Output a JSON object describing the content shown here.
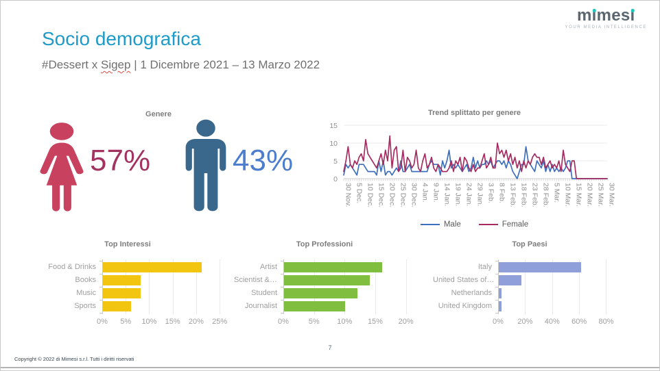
{
  "slide": {
    "title": "Socio demografica",
    "subtitle_prefix": "#Dessert x ",
    "subtitle_misspelled": "Sigep",
    "subtitle_rest": " | 1 Dicembre 2021 – 13 Marzo 2022",
    "page_number": "7",
    "copyright": "Copyright © 2022 di Mimesi s.r.l. Tutti i diritti riservati"
  },
  "logo": {
    "text": "mimesi",
    "tagline": "YOUR MEDIA INTELLIGENCE",
    "text_color": "#5B6670",
    "dot_color": "#1BC5BD"
  },
  "gender": {
    "title": "Genere",
    "female_pct": "57%",
    "male_pct": "43%",
    "female_icon_color": "#C8425F",
    "female_text_color": "#A33261",
    "male_icon_color": "#39688C",
    "male_text_color": "#4C7ECD"
  },
  "chart_data": [
    {
      "type": "line",
      "title": "Trend splittato per genere",
      "ylim": [
        0,
        15
      ],
      "yticks": [
        0,
        5,
        10,
        15
      ],
      "grid": true,
      "legend_position": "bottom",
      "x_tick_step": 5,
      "x_tick_labels": [
        "30 Nov.",
        "5 Dec.",
        "10 Dec.",
        "15 Dec.",
        "20 Dec.",
        "25 Dec.",
        "30 Dec.",
        "4 Jan.",
        "9 Jan.",
        "14 Jan.",
        "19 Jan.",
        "24 Jan.",
        "29 Jan.",
        "3 Feb.",
        "8 Feb.",
        "13 Feb.",
        "18 Feb.",
        "23 Feb.",
        "28 Feb.",
        "5 Mar.",
        "10 Mar.",
        "15 Mar.",
        "20 Mar.",
        "25 Mar.",
        "30 Mar."
      ],
      "series": [
        {
          "name": "Male",
          "color": "#3E6FBE",
          "values": [
            1,
            4,
            3,
            4,
            3,
            2,
            1,
            4,
            4,
            4,
            3,
            2,
            2,
            2,
            2,
            1,
            5,
            2,
            5,
            1,
            2,
            2,
            1,
            2,
            3,
            2,
            5,
            2,
            2,
            3,
            4,
            2,
            2,
            2,
            2,
            2,
            2,
            2,
            2,
            4,
            5,
            4,
            4,
            4,
            1,
            5,
            3,
            5,
            8,
            3,
            4,
            3,
            4,
            3,
            2,
            3,
            4,
            2,
            3,
            6,
            3,
            5,
            3,
            4,
            4,
            5,
            4,
            5,
            3,
            4,
            5,
            5,
            4,
            5,
            3,
            5,
            4,
            2,
            1,
            0,
            2,
            4,
            4,
            9,
            5,
            4,
            3,
            2,
            5,
            4,
            3,
            5,
            2,
            4,
            2,
            4,
            2,
            3,
            2,
            3,
            2,
            3,
            5,
            5,
            0,
            0,
            0,
            0,
            0,
            0,
            0,
            0,
            0,
            0,
            0,
            0,
            0,
            0,
            0,
            0,
            0
          ]
        },
        {
          "name": "Female",
          "color": "#A52C60",
          "values": [
            2,
            5,
            9,
            4,
            3,
            5,
            4,
            6,
            7,
            5,
            11,
            7,
            6,
            5,
            4,
            3,
            5,
            7,
            4,
            8,
            5,
            12,
            3,
            8,
            9,
            2,
            3,
            8,
            2,
            6,
            5,
            3,
            4,
            8,
            3,
            2,
            5,
            7,
            3,
            4,
            6,
            3,
            2,
            4,
            3,
            2,
            2,
            2,
            3,
            5,
            2,
            5,
            4,
            6,
            2,
            6,
            5,
            3,
            2,
            4,
            2,
            3,
            3,
            5,
            7,
            3,
            4,
            6,
            3,
            3,
            10,
            7,
            8,
            6,
            8,
            5,
            7,
            4,
            6,
            3,
            5,
            2,
            5,
            3,
            5,
            4,
            6,
            7,
            6,
            6,
            4,
            6,
            3,
            4,
            5,
            3,
            4,
            3,
            5,
            2,
            8,
            4,
            3,
            2,
            5,
            5,
            0,
            0,
            0,
            0,
            0,
            0,
            0,
            0,
            0,
            0,
            0,
            0,
            0,
            0,
            0
          ]
        }
      ]
    },
    {
      "type": "bar",
      "orientation": "horizontal",
      "title": "Top Interessi",
      "color": "#F2C511",
      "categories": [
        "Food & Drinks",
        "Books",
        "Music",
        "Sports"
      ],
      "values": [
        21,
        8,
        8,
        6
      ],
      "xticks": [
        0,
        5,
        10,
        15,
        20,
        25
      ],
      "xmax": 26,
      "tick_suffix": "%"
    },
    {
      "type": "bar",
      "orientation": "horizontal",
      "title": "Top Professioni",
      "color": "#7FBE3F",
      "categories": [
        "Artist",
        "Scientist &…",
        "Student",
        "Journalist"
      ],
      "values": [
        16,
        14,
        12,
        10
      ],
      "xticks": [
        0,
        5,
        10,
        15,
        20
      ],
      "xmax": 21.5,
      "tick_suffix": "%"
    },
    {
      "type": "bar",
      "orientation": "horizontal",
      "title": "Top Paesi",
      "color": "#8F9FDA",
      "categories": [
        "Italy",
        "United States of…",
        "Netherlands",
        "United Kingdom"
      ],
      "values": [
        61,
        17,
        2,
        2
      ],
      "xticks": [
        0,
        20,
        40,
        60,
        80
      ],
      "xmax": 95,
      "tick_suffix": "%"
    }
  ]
}
